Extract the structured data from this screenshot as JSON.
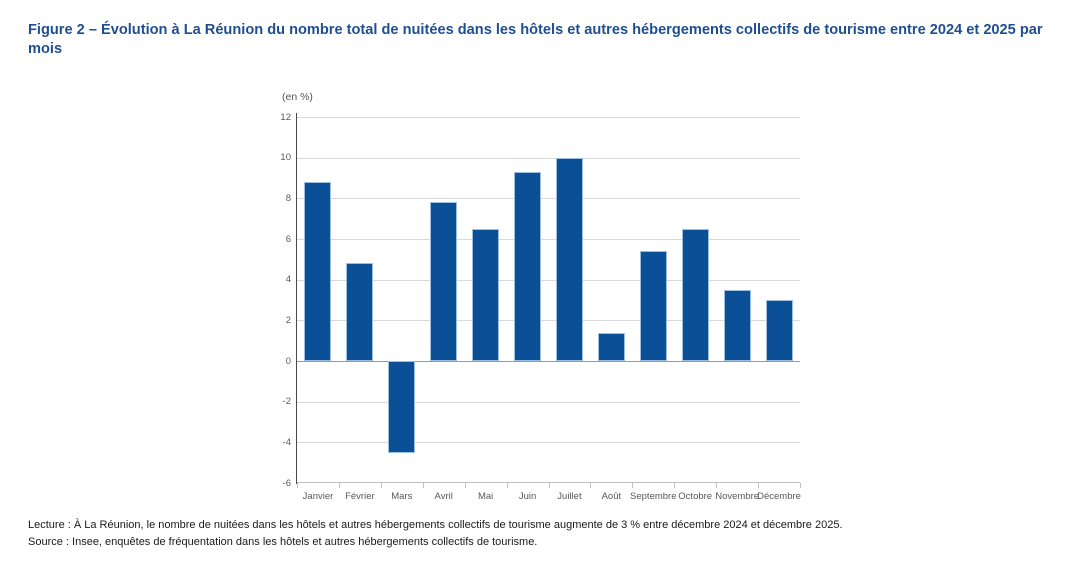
{
  "figure": {
    "title": "Figure 2 – Évolution à La Réunion du nombre total de nuitées dans les hôtels et autres hébergements collectifs de tourisme entre 2024 et 2025 par mois",
    "unit_label": "(en %)",
    "lecture": "Lecture : À La Réunion, le nombre de nuitées dans les hôtels et autres hébergements collectifs de tourisme augmente de 3 % entre décembre 2024 et décembre 2025.",
    "source": "Source : Insee, enquêtes de fréquentation dans les hôtels et autres hébergements collectifs de tourisme."
  },
  "colors": {
    "title": "#1e4f91",
    "bar": "#0b4f96",
    "bar_border": "#9dbfdf",
    "gridline": "#d9d9d9",
    "zero_line": "#9a9a9a",
    "axis_line": "#4a4a4a",
    "x_axis_line": "#c0c0c0",
    "axis_label": "#595959"
  },
  "chart_data": {
    "type": "bar",
    "title": "Figure 2 – Évolution à La Réunion du nombre total de nuitées dans les hôtels et autres hébergements collectifs de tourisme entre 2024 et 2025 par mois",
    "categories": [
      "Janvier",
      "Février",
      "Mars",
      "Avril",
      "Mai",
      "Juin",
      "Juillet",
      "Août",
      "Septembre",
      "Octobre",
      "Novembre",
      "Décembre"
    ],
    "values": [
      8.8,
      4.8,
      -4.5,
      7.8,
      6.5,
      9.3,
      10,
      1.4,
      5.4,
      6.5,
      3.5,
      3
    ],
    "xlabel": "",
    "ylabel": "(en %)",
    "ylim": [
      -6,
      12
    ],
    "ytick_step": 2,
    "grid": true,
    "legend": false
  }
}
